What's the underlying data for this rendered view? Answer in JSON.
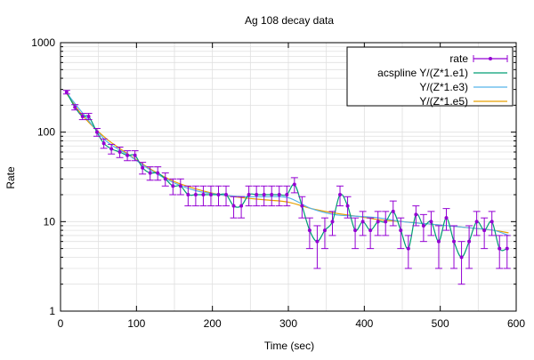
{
  "chart_data": {
    "type": "line",
    "title": "Ag 108 decay data",
    "xlabel": "Time (sec)",
    "ylabel": "Rate",
    "xlim": [
      0,
      600
    ],
    "ylim": [
      1,
      1000
    ],
    "yscale": "log",
    "grid": true,
    "legend_position": "top-right",
    "x_ticks": [
      0,
      100,
      200,
      300,
      400,
      500,
      600
    ],
    "x_tick_labels": [
      "0",
      "100",
      "200",
      "300",
      "400",
      "500",
      "600"
    ],
    "y_ticks": [
      1,
      10,
      100,
      1000
    ],
    "y_tick_labels": [
      "1",
      "10",
      "100",
      "1000"
    ],
    "series": [
      {
        "name": "rate",
        "kind": "points-errorbars",
        "color": "#9400d3",
        "x": [
          8,
          19,
          29,
          37,
          48,
          57,
          67,
          78,
          88,
          98,
          108,
          118,
          128,
          138,
          148,
          158,
          168,
          178,
          188,
          198,
          208,
          218,
          228,
          238,
          248,
          258,
          268,
          278,
          288,
          298,
          308,
          318,
          328,
          338,
          348,
          358,
          368,
          378,
          388,
          398,
          408,
          418,
          428,
          438,
          448,
          458,
          468,
          478,
          488,
          498,
          508,
          518,
          528,
          538,
          548,
          558,
          568,
          578,
          588
        ],
        "y": [
          280,
          190,
          150,
          150,
          100,
          75,
          65,
          60,
          55,
          55,
          40,
          35,
          35,
          30,
          25,
          25,
          20,
          20,
          20,
          20,
          20,
          20,
          15,
          15,
          20,
          20,
          20,
          20,
          20,
          20,
          26,
          15,
          8,
          6,
          8,
          10,
          20,
          15,
          8,
          10,
          8,
          10,
          10,
          13,
          8,
          5,
          12,
          9,
          10,
          6,
          11,
          6,
          4,
          6,
          10,
          8,
          10,
          5,
          5
        ],
        "yerr": [
          13,
          13,
          12,
          12,
          10,
          9,
          8,
          8,
          7,
          7,
          6,
          6,
          6,
          5,
          5,
          5,
          5,
          5,
          5,
          5,
          5,
          5,
          4,
          4,
          5,
          5,
          5,
          5,
          5,
          5,
          5,
          4,
          3,
          3,
          3,
          3,
          5,
          4,
          3,
          3,
          3,
          3,
          3,
          4,
          3,
          2,
          3,
          3,
          3,
          3,
          3,
          3,
          2,
          3,
          3,
          3,
          3,
          2,
          2
        ]
      },
      {
        "name": "acspline Y/(Z*1.e1)",
        "kind": "line",
        "color": "#009e73",
        "x": [
          8,
          19,
          29,
          37,
          48,
          57,
          67,
          78,
          88,
          98,
          108,
          118,
          128,
          138,
          148,
          158,
          168,
          178,
          188,
          198,
          208,
          218,
          228,
          238,
          248,
          258,
          268,
          278,
          288,
          298,
          308,
          318,
          328,
          338,
          348,
          358,
          368,
          378,
          388,
          398,
          408,
          418,
          428,
          438,
          448,
          458,
          468,
          478,
          488,
          498,
          508,
          518,
          528,
          538,
          548,
          558,
          568,
          578,
          588
        ],
        "y": [
          280,
          190,
          150,
          150,
          100,
          75,
          65,
          60,
          55,
          55,
          40,
          35,
          35,
          30,
          25,
          25,
          20,
          20,
          20,
          20,
          20,
          20,
          15,
          15,
          20,
          20,
          20,
          20,
          20,
          20,
          26,
          15,
          8,
          6,
          8,
          10,
          20,
          15,
          8,
          10,
          8,
          10,
          10,
          13,
          8,
          5,
          12,
          9,
          10,
          6,
          11,
          6,
          4,
          6,
          10,
          8,
          10,
          5,
          5
        ]
      },
      {
        "name": "Y/(Z*1.e3)",
        "kind": "line",
        "color": "#56b4e9",
        "x": [
          8,
          30,
          60,
          90,
          120,
          150,
          180,
          210,
          240,
          270,
          300,
          330,
          360,
          390,
          420,
          450,
          480,
          510,
          540,
          570,
          590
        ],
        "y": [
          275,
          160,
          80,
          55,
          37,
          27,
          22,
          20,
          19,
          19,
          18.5,
          14,
          12,
          11.5,
          11,
          10,
          9.5,
          9,
          8.5,
          8,
          7
        ]
      },
      {
        "name": "Y/(Z*1.e5)",
        "kind": "line",
        "color": "#e69f00",
        "x": [
          8,
          30,
          60,
          90,
          120,
          150,
          180,
          210,
          240,
          270,
          300,
          330,
          360,
          390,
          420,
          450,
          480,
          510,
          540,
          570,
          590
        ],
        "y": [
          270,
          150,
          85,
          56,
          38,
          28,
          23,
          20,
          18.5,
          17.5,
          16.5,
          14,
          12.5,
          11.5,
          10.5,
          10,
          9.5,
          9,
          8.5,
          8,
          7.5
        ]
      }
    ]
  }
}
